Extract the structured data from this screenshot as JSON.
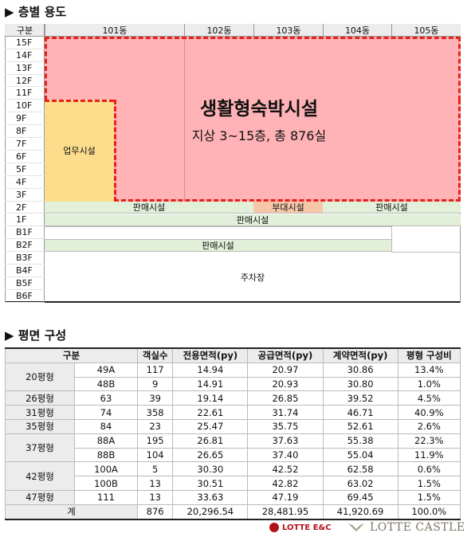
{
  "section1": {
    "title": "▶ 층별 용도"
  },
  "floor_table": {
    "header_label": "구분",
    "buildings": [
      "101동",
      "102동",
      "103동",
      "104동",
      "105동"
    ],
    "floors": [
      "15F",
      "14F",
      "13F",
      "12F",
      "11F",
      "10F",
      "9F",
      "8F",
      "7F",
      "6F",
      "5F",
      "4F",
      "3F",
      "2F",
      "1F",
      "B1F",
      "B2F",
      "B3F",
      "B4F",
      "B5F",
      "B6F"
    ]
  },
  "zones": {
    "residence_title": "생활형숙박시설",
    "residence_sub": "지상 3~15층, 총 876실",
    "office": "업무시설",
    "retail_2f_left": "판매시설",
    "aux_2f": "부대시설",
    "retail_2f_right": "판매시설",
    "retail_1f": "판매시설",
    "retail_b2f": "판매시설",
    "parking": "주차장"
  },
  "colors": {
    "residence": "#ffb3b6",
    "residence_border": "#e8201c",
    "office": "#fbdd8c",
    "retail": "#e2efd9",
    "aux": "#f6c6a9"
  },
  "section2": {
    "title": "▶ 평면 구성"
  },
  "plan_table": {
    "headers": [
      "구분",
      "객실수",
      "전용면적(py)",
      "공급면적(py)",
      "계약면적(py)",
      "평형 구성비"
    ],
    "rows": [
      {
        "type": "20평형",
        "sub": "49A",
        "rooms": "117",
        "excl": "14.94",
        "supply": "20.97",
        "contract": "30.86",
        "ratio": "13.4%"
      },
      {
        "type": "",
        "sub": "48B",
        "rooms": "9",
        "excl": "14.91",
        "supply": "20.93",
        "contract": "30.80",
        "ratio": "1.0%"
      },
      {
        "type": "26평형",
        "sub": "63",
        "rooms": "39",
        "excl": "19.14",
        "supply": "26.85",
        "contract": "39.52",
        "ratio": "4.5%"
      },
      {
        "type": "31평형",
        "sub": "74",
        "rooms": "358",
        "excl": "22.61",
        "supply": "31.74",
        "contract": "46.71",
        "ratio": "40.9%"
      },
      {
        "type": "35평형",
        "sub": "84",
        "rooms": "23",
        "excl": "25.47",
        "supply": "35.75",
        "contract": "52.61",
        "ratio": "2.6%"
      },
      {
        "type": "37평형",
        "sub": "88A",
        "rooms": "195",
        "excl": "26.81",
        "supply": "37.63",
        "contract": "55.38",
        "ratio": "22.3%"
      },
      {
        "type": "",
        "sub": "88B",
        "rooms": "104",
        "excl": "26.65",
        "supply": "37.40",
        "contract": "55.04",
        "ratio": "11.9%"
      },
      {
        "type": "42평형",
        "sub": "100A",
        "rooms": "5",
        "excl": "30.30",
        "supply": "42.52",
        "contract": "62.58",
        "ratio": "0.6%"
      },
      {
        "type": "",
        "sub": "100B",
        "rooms": "13",
        "excl": "30.51",
        "supply": "42.82",
        "contract": "63.02",
        "ratio": "1.5%"
      },
      {
        "type": "47평형",
        "sub": "111",
        "rooms": "13",
        "excl": "33.63",
        "supply": "47.19",
        "contract": "69.45",
        "ratio": "1.5%"
      }
    ],
    "total": {
      "label": "계",
      "rooms": "876",
      "excl": "20,296.54",
      "supply": "28,481.95",
      "contract": "41,920.69",
      "ratio": "100.0%"
    }
  },
  "logos": {
    "lotte_ec": "LOTTE E&C",
    "lotte_castle": "LOTTE CASTLE"
  }
}
